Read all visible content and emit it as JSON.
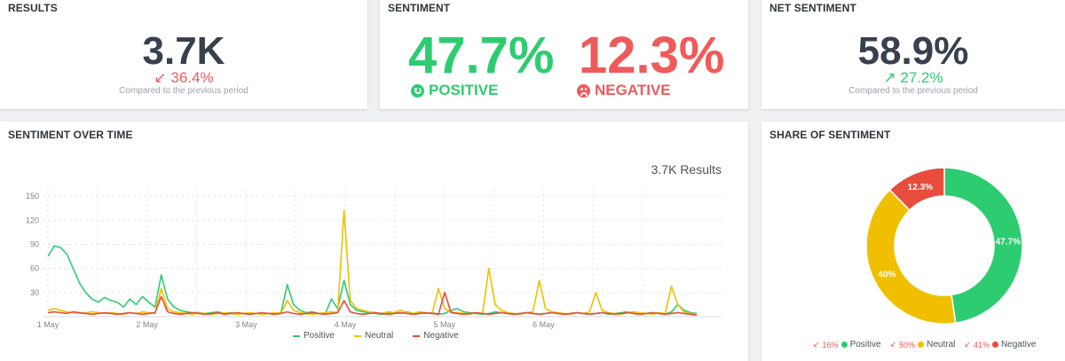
{
  "results": {
    "title": "RESULTS",
    "value": "3.7K",
    "delta": "36.4%",
    "delta_icon": "arrow-down-left-icon",
    "compare_text": "Compared to the previous period"
  },
  "sentiment": {
    "title": "SENTIMENT",
    "positive_pct": "47.7%",
    "positive_label": "POSITIVE",
    "negative_pct": "12.3%",
    "negative_label": "NEGATIVE",
    "positive_icon": "smiley-icon",
    "negative_icon": "frown-icon"
  },
  "net_sentiment": {
    "title": "NET SENTIMENT",
    "value": "58.9%",
    "delta": "27.2%",
    "delta_icon": "arrow-up-right-icon",
    "compare_text": "Compared to the previous period"
  },
  "sentiment_over_time": {
    "title": "SENTIMENT OVER TIME",
    "results_text": "3.7K Results"
  },
  "share_of_sentiment": {
    "title": "SHARE OF SENTIMENT",
    "legend": [
      {
        "delta": "16%",
        "label": "Positive"
      },
      {
        "delta": "50%",
        "label": "Neutral"
      },
      {
        "delta": "41%",
        "label": "Negative"
      }
    ]
  },
  "colors": {
    "positive": "#2ecc71",
    "neutral": "#f0c000",
    "negative": "#e74c3c",
    "text": "#37414d"
  },
  "chart_data": [
    {
      "type": "line",
      "x_ticks": [
        "1 May",
        "2 May",
        "3 May",
        "4 May",
        "5 May",
        "6 May"
      ],
      "y_ticks": [
        30,
        60,
        90,
        120,
        150
      ],
      "ylim": [
        0,
        160
      ],
      "grid": true,
      "legend_position": "bottom",
      "series": [
        {
          "name": "Positive",
          "color": "#2ecc71",
          "values": [
            75,
            88,
            86,
            78,
            60,
            42,
            30,
            22,
            18,
            24,
            20,
            18,
            12,
            22,
            15,
            25,
            18,
            12,
            52,
            22,
            12,
            8,
            6,
            5,
            5,
            4,
            5,
            6,
            4,
            5,
            3,
            4,
            3,
            4,
            3,
            4,
            3,
            5,
            40,
            15,
            8,
            5,
            6,
            4,
            3,
            22,
            10,
            45,
            15,
            8,
            6,
            5,
            4,
            3,
            4,
            5,
            4,
            6,
            4,
            5,
            4,
            5,
            3,
            4,
            8,
            10,
            6,
            5,
            4,
            3,
            4,
            6,
            5,
            4,
            3,
            4,
            5,
            4,
            3,
            4,
            5,
            4,
            3,
            4,
            5,
            4,
            3,
            4,
            5,
            3,
            4,
            5,
            6,
            4,
            3,
            4,
            5,
            4,
            3,
            6,
            15,
            8,
            5,
            4
          ]
        },
        {
          "name": "Neutral",
          "color": "#f0c000",
          "values": [
            8,
            10,
            8,
            6,
            5,
            4,
            5,
            6,
            5,
            4,
            5,
            4,
            3,
            5,
            4,
            6,
            5,
            4,
            35,
            10,
            6,
            5,
            4,
            3,
            5,
            4,
            3,
            4,
            5,
            4,
            3,
            4,
            5,
            4,
            3,
            4,
            5,
            4,
            20,
            8,
            5,
            4,
            3,
            4,
            5,
            6,
            5,
            132,
            20,
            10,
            8,
            6,
            5,
            4,
            6,
            5,
            8,
            5,
            4,
            6,
            5,
            4,
            35,
            10,
            6,
            5,
            4,
            3,
            5,
            4,
            60,
            15,
            8,
            5,
            4,
            3,
            5,
            6,
            45,
            10,
            6,
            5,
            4,
            3,
            5,
            4,
            6,
            30,
            8,
            5,
            4,
            3,
            5,
            6,
            5,
            4,
            3,
            5,
            4,
            38,
            15,
            6,
            4,
            3
          ]
        },
        {
          "name": "Negative",
          "color": "#e74c3c",
          "values": [
            5,
            6,
            5,
            4,
            6,
            5,
            4,
            3,
            4,
            5,
            4,
            3,
            4,
            5,
            4,
            3,
            4,
            5,
            25,
            6,
            4,
            3,
            4,
            5,
            4,
            3,
            4,
            5,
            3,
            4,
            5,
            4,
            3,
            4,
            5,
            4,
            3,
            4,
            6,
            4,
            3,
            4,
            5,
            4,
            3,
            4,
            5,
            20,
            6,
            4,
            3,
            4,
            5,
            4,
            3,
            4,
            5,
            4,
            3,
            4,
            5,
            4,
            3,
            30,
            5,
            4,
            3,
            4,
            5,
            4,
            3,
            4,
            5,
            4,
            3,
            4,
            5,
            4,
            3,
            4,
            5,
            4,
            3,
            4,
            5,
            4,
            3,
            4,
            5,
            4,
            3,
            4,
            5,
            4,
            3,
            4,
            5,
            4,
            3,
            4,
            5,
            4,
            3,
            2
          ]
        }
      ]
    },
    {
      "type": "pie",
      "donut": true,
      "slices": [
        {
          "label": "47.7%",
          "name": "Positive",
          "value": 47.7,
          "color": "#2ecc71"
        },
        {
          "label": "40%",
          "name": "Neutral",
          "value": 40.0,
          "color": "#f0c000"
        },
        {
          "label": "12.3%",
          "name": "Negative",
          "value": 12.3,
          "color": "#e74c3c"
        }
      ]
    }
  ]
}
